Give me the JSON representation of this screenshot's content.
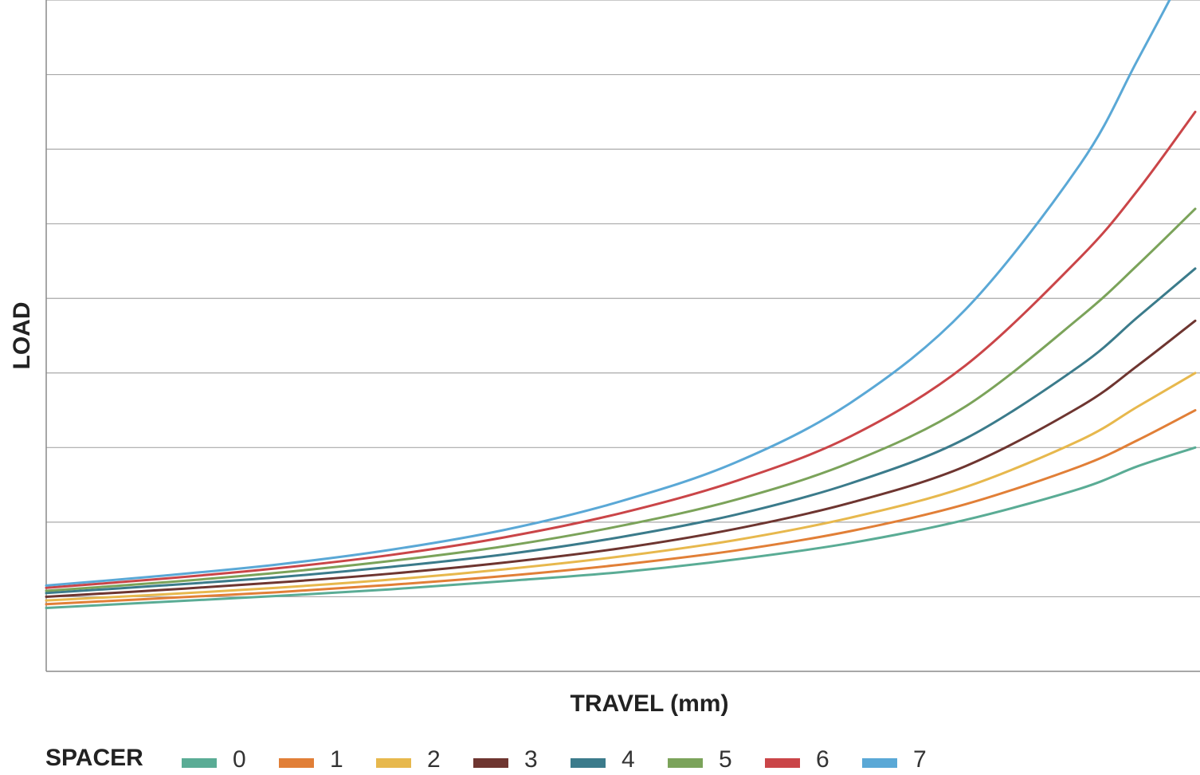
{
  "chart_data": {
    "type": "line",
    "title": "",
    "xlabel": "TRAVEL (mm)",
    "ylabel": "LOAD",
    "xlim": [
      0,
      1
    ],
    "ylim": [
      0,
      9
    ],
    "grid": true,
    "legend_title": "SPACER",
    "legend_placement": "bottom",
    "x": [
      0,
      0.1,
      0.2,
      0.3,
      0.4,
      0.5,
      0.6,
      0.7,
      0.8,
      0.9,
      0.95,
      1.0
    ],
    "series": [
      {
        "name": "0",
        "color": "#5aac95",
        "values": [
          0.85,
          0.93,
          1.01,
          1.1,
          1.21,
          1.33,
          1.5,
          1.72,
          2.03,
          2.45,
          2.75,
          3.0
        ]
      },
      {
        "name": "1",
        "color": "#e17f37",
        "values": [
          0.9,
          0.98,
          1.06,
          1.16,
          1.28,
          1.43,
          1.62,
          1.88,
          2.24,
          2.75,
          3.1,
          3.5
        ]
      },
      {
        "name": "2",
        "color": "#e7b84d",
        "values": [
          0.95,
          1.03,
          1.12,
          1.23,
          1.37,
          1.54,
          1.76,
          2.06,
          2.47,
          3.1,
          3.55,
          4.0
        ]
      },
      {
        "name": "3",
        "color": "#6e3530",
        "values": [
          1.0,
          1.09,
          1.19,
          1.31,
          1.46,
          1.65,
          1.91,
          2.26,
          2.75,
          3.55,
          4.1,
          4.7
        ]
      },
      {
        "name": "4",
        "color": "#3b7b8b",
        "values": [
          1.05,
          1.15,
          1.26,
          1.4,
          1.57,
          1.8,
          2.1,
          2.52,
          3.12,
          4.1,
          4.75,
          5.4
        ]
      },
      {
        "name": "5",
        "color": "#7ba35a",
        "values": [
          1.08,
          1.19,
          1.32,
          1.48,
          1.68,
          1.95,
          2.3,
          2.8,
          3.55,
          4.75,
          5.45,
          6.2
        ]
      },
      {
        "name": "6",
        "color": "#ca4548",
        "values": [
          1.12,
          1.24,
          1.38,
          1.56,
          1.8,
          2.12,
          2.55,
          3.15,
          4.1,
          5.55,
          6.45,
          7.5
        ]
      },
      {
        "name": "7",
        "color": "#5aa8d6",
        "values": [
          1.15,
          1.28,
          1.43,
          1.63,
          1.9,
          2.28,
          2.8,
          3.6,
          4.85,
          6.8,
          8.2,
          9.65
        ]
      }
    ]
  }
}
